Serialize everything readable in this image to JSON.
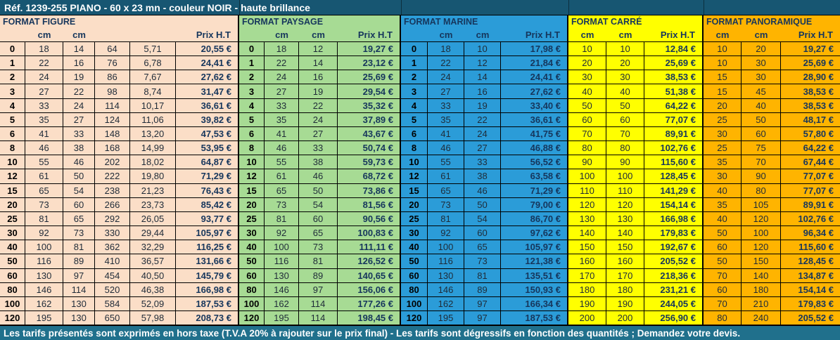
{
  "header": {
    "title": "Réf. 1239-255 PIANO - 60 x 23 mn - couleur NOIR - haute brillance",
    "bg": "#175672"
  },
  "footer": {
    "text": "Les tarifs présentés sont exprimés en hors taxe (T.V.A  20% à rajouter sur le prix final) - Les tarifs sont dégressifs en fonction des quantités ; Demandez votre devis.",
    "bg": "#20708C"
  },
  "sections": [
    {
      "name": "FORMAT FIGURE",
      "bg": "#FBDEC7",
      "has_label_col": true,
      "columns": [
        "",
        "cm",
        "cm",
        "",
        "",
        "Prix H.T"
      ],
      "rows": [
        [
          "0",
          "18",
          "14",
          "64",
          "5,71",
          "20,55 €"
        ],
        [
          "1",
          "22",
          "16",
          "76",
          "6,78",
          "24,41 €"
        ],
        [
          "2",
          "24",
          "19",
          "86",
          "7,67",
          "27,62 €"
        ],
        [
          "3",
          "27",
          "22",
          "98",
          "8,74",
          "31,47 €"
        ],
        [
          "4",
          "33",
          "24",
          "114",
          "10,17",
          "36,61 €"
        ],
        [
          "5",
          "35",
          "27",
          "124",
          "11,06",
          "39,82 €"
        ],
        [
          "6",
          "41",
          "33",
          "148",
          "13,20",
          "47,53 €"
        ],
        [
          "8",
          "46",
          "38",
          "168",
          "14,99",
          "53,95 €"
        ],
        [
          "10",
          "55",
          "46",
          "202",
          "18,02",
          "64,87 €"
        ],
        [
          "12",
          "61",
          "50",
          "222",
          "19,80",
          "71,29 €"
        ],
        [
          "15",
          "65",
          "54",
          "238",
          "21,23",
          "76,43 €"
        ],
        [
          "20",
          "73",
          "60",
          "266",
          "23,73",
          "85,42 €"
        ],
        [
          "25",
          "81",
          "65",
          "292",
          "26,05",
          "93,77 €"
        ],
        [
          "30",
          "92",
          "73",
          "330",
          "29,44",
          "105,97 €"
        ],
        [
          "40",
          "100",
          "81",
          "362",
          "32,29",
          "116,25 €"
        ],
        [
          "50",
          "116",
          "89",
          "410",
          "36,57",
          "131,66 €"
        ],
        [
          "60",
          "130",
          "97",
          "454",
          "40,50",
          "145,79 €"
        ],
        [
          "80",
          "146",
          "114",
          "520",
          "46,38",
          "166,98 €"
        ],
        [
          "100",
          "162",
          "130",
          "584",
          "52,09",
          "187,53 €"
        ],
        [
          "120",
          "195",
          "130",
          "650",
          "57,98",
          "208,73 €"
        ]
      ]
    },
    {
      "name": "FORMAT PAYSAGE",
      "bg": "#A7DB94",
      "has_label_col": true,
      "columns": [
        "",
        "cm",
        "cm",
        "Prix H.T"
      ],
      "rows": [
        [
          "0",
          "18",
          "12",
          "19,27 €"
        ],
        [
          "1",
          "22",
          "14",
          "23,12 €"
        ],
        [
          "2",
          "24",
          "16",
          "25,69 €"
        ],
        [
          "3",
          "27",
          "19",
          "29,54 €"
        ],
        [
          "4",
          "33",
          "22",
          "35,32 €"
        ],
        [
          "5",
          "35",
          "24",
          "37,89 €"
        ],
        [
          "6",
          "41",
          "27",
          "43,67 €"
        ],
        [
          "8",
          "46",
          "33",
          "50,74 €"
        ],
        [
          "10",
          "55",
          "38",
          "59,73 €"
        ],
        [
          "12",
          "61",
          "46",
          "68,72 €"
        ],
        [
          "15",
          "65",
          "50",
          "73,86 €"
        ],
        [
          "20",
          "73",
          "54",
          "81,56 €"
        ],
        [
          "25",
          "81",
          "60",
          "90,56 €"
        ],
        [
          "30",
          "92",
          "65",
          "100,83 €"
        ],
        [
          "40",
          "100",
          "73",
          "111,11 €"
        ],
        [
          "50",
          "116",
          "81",
          "126,52 €"
        ],
        [
          "60",
          "130",
          "89",
          "140,65 €"
        ],
        [
          "80",
          "146",
          "97",
          "156,06 €"
        ],
        [
          "100",
          "162",
          "114",
          "177,26 €"
        ],
        [
          "120",
          "195",
          "114",
          "198,45 €"
        ]
      ]
    },
    {
      "name": "FORMAT MARINE",
      "bg": "#2B9CD8",
      "has_label_col": true,
      "columns": [
        "",
        "cm",
        "cm",
        "Prix H.T"
      ],
      "rows": [
        [
          "0",
          "18",
          "10",
          "17,98 €"
        ],
        [
          "1",
          "22",
          "12",
          "21,84 €"
        ],
        [
          "2",
          "24",
          "14",
          "24,41 €"
        ],
        [
          "3",
          "27",
          "16",
          "27,62 €"
        ],
        [
          "4",
          "33",
          "19",
          "33,40 €"
        ],
        [
          "5",
          "35",
          "22",
          "36,61 €"
        ],
        [
          "6",
          "41",
          "24",
          "41,75 €"
        ],
        [
          "8",
          "46",
          "27",
          "46,88 €"
        ],
        [
          "10",
          "55",
          "33",
          "56,52 €"
        ],
        [
          "12",
          "61",
          "38",
          "63,58 €"
        ],
        [
          "15",
          "65",
          "46",
          "71,29 €"
        ],
        [
          "20",
          "73",
          "50",
          "79,00 €"
        ],
        [
          "25",
          "81",
          "54",
          "86,70 €"
        ],
        [
          "30",
          "92",
          "60",
          "97,62 €"
        ],
        [
          "40",
          "100",
          "65",
          "105,97 €"
        ],
        [
          "50",
          "116",
          "73",
          "121,38 €"
        ],
        [
          "60",
          "130",
          "81",
          "135,51 €"
        ],
        [
          "80",
          "146",
          "89",
          "150,93 €"
        ],
        [
          "100",
          "162",
          "97",
          "166,34 €"
        ],
        [
          "120",
          "195",
          "97",
          "187,53 €"
        ]
      ]
    },
    {
      "name": "FORMAT CARRÉ",
      "bg": "#FFFF00",
      "has_label_col": false,
      "columns": [
        "cm",
        "cm",
        "Prix H.T"
      ],
      "rows": [
        [
          "10",
          "10",
          "12,84 €"
        ],
        [
          "20",
          "20",
          "25,69 €"
        ],
        [
          "30",
          "30",
          "38,53 €"
        ],
        [
          "40",
          "40",
          "51,38 €"
        ],
        [
          "50",
          "50",
          "64,22 €"
        ],
        [
          "60",
          "60",
          "77,07 €"
        ],
        [
          "70",
          "70",
          "89,91 €"
        ],
        [
          "80",
          "80",
          "102,76 €"
        ],
        [
          "90",
          "90",
          "115,60 €"
        ],
        [
          "100",
          "100",
          "128,45 €"
        ],
        [
          "110",
          "110",
          "141,29 €"
        ],
        [
          "120",
          "120",
          "154,14 €"
        ],
        [
          "130",
          "130",
          "166,98 €"
        ],
        [
          "140",
          "140",
          "179,83 €"
        ],
        [
          "150",
          "150",
          "192,67 €"
        ],
        [
          "160",
          "160",
          "205,52 €"
        ],
        [
          "170",
          "170",
          "218,36 €"
        ],
        [
          "180",
          "180",
          "231,21 €"
        ],
        [
          "190",
          "190",
          "244,05 €"
        ],
        [
          "200",
          "200",
          "256,90 €"
        ]
      ]
    },
    {
      "name": "FORMAT PANORAMIQUE",
      "bg": "#FFB400",
      "has_label_col": false,
      "columns": [
        "cm",
        "cm",
        "Prix H.T"
      ],
      "rows": [
        [
          "10",
          "20",
          "19,27 €"
        ],
        [
          "10",
          "30",
          "25,69 €"
        ],
        [
          "15",
          "30",
          "28,90 €"
        ],
        [
          "15",
          "45",
          "38,53 €"
        ],
        [
          "20",
          "40",
          "38,53 €"
        ],
        [
          "25",
          "50",
          "48,17 €"
        ],
        [
          "30",
          "60",
          "57,80 €"
        ],
        [
          "25",
          "75",
          "64,22 €"
        ],
        [
          "35",
          "70",
          "67,44 €"
        ],
        [
          "30",
          "90",
          "77,07 €"
        ],
        [
          "40",
          "80",
          "77,07 €"
        ],
        [
          "35",
          "105",
          "89,91 €"
        ],
        [
          "40",
          "120",
          "102,76 €"
        ],
        [
          "50",
          "100",
          "96,34 €"
        ],
        [
          "60",
          "120",
          "115,60 €"
        ],
        [
          "50",
          "150",
          "128,45 €"
        ],
        [
          "70",
          "140",
          "134,87 €"
        ],
        [
          "60",
          "180",
          "154,14 €"
        ],
        [
          "70",
          "210",
          "179,83 €"
        ],
        [
          "80",
          "240",
          "205,52 €"
        ]
      ]
    }
  ]
}
